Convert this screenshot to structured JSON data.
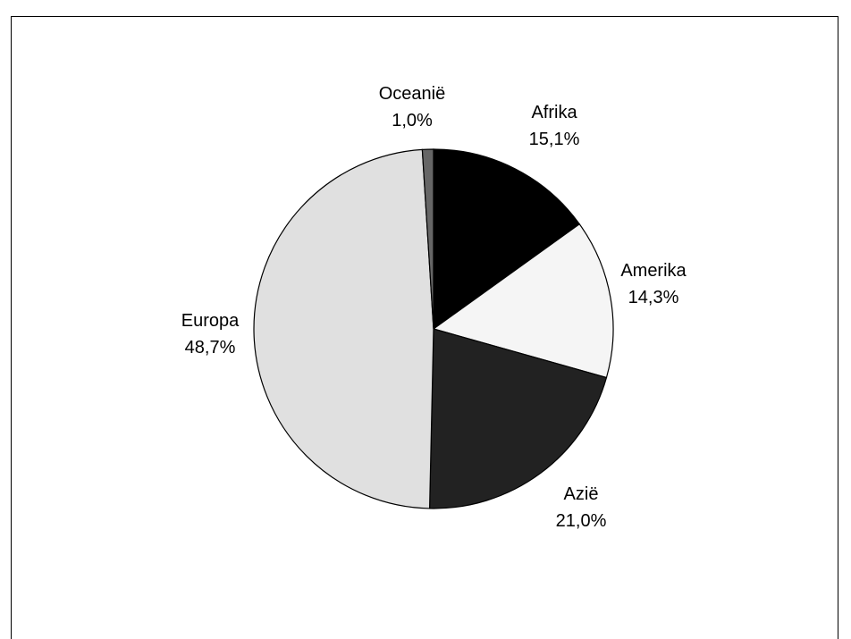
{
  "caption": "",
  "chart_data": {
    "type": "pie",
    "title": "",
    "start_angle_deg": 0,
    "direction": "clockwise",
    "slices": [
      {
        "name": "Afrika",
        "value": 15.1,
        "label": "15,1%",
        "color": "#000000"
      },
      {
        "name": "Amerika",
        "value": 14.3,
        "label": "14,3%",
        "color": "#f5f5f5"
      },
      {
        "name": "Azië",
        "value": 21.0,
        "label": "21,0%",
        "color": "#222222"
      },
      {
        "name": "Europa",
        "value": 48.7,
        "label": "48,7%",
        "color": "#e0e0e0"
      },
      {
        "name": "Oceanië",
        "value": 1.0,
        "label": "1,0%",
        "color": "#666666"
      }
    ],
    "stroke_color": "#000000",
    "legend": "none"
  }
}
